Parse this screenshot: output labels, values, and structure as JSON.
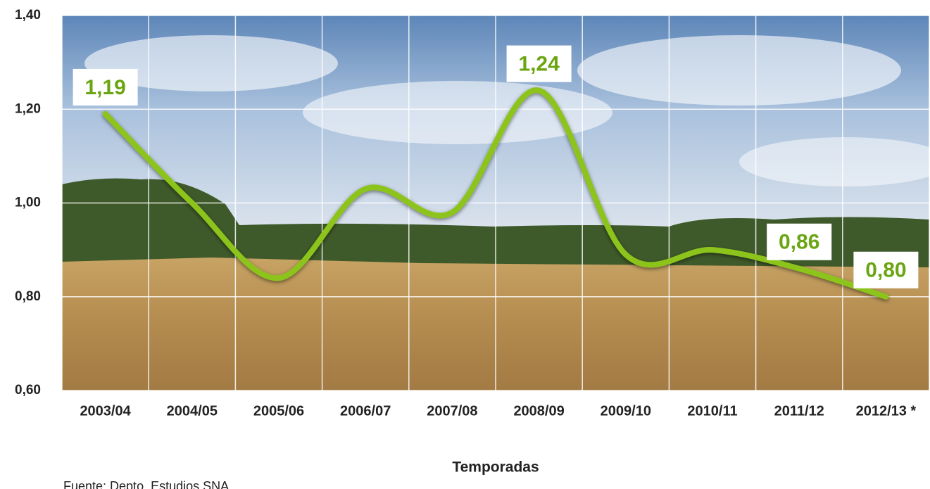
{
  "chart_data": {
    "type": "line",
    "x_label": "Temporadas",
    "source": "Fuente: Depto. Estudios SNA",
    "categories": [
      "2003/04",
      "2004/05",
      "2005/06",
      "2006/07",
      "2007/08",
      "2008/09",
      "2009/10",
      "2010/11",
      "2011/12",
      "2012/13 *"
    ],
    "series": [
      {
        "color": "#8cc41c",
        "values": [
          1.19,
          1.0,
          0.84,
          1.03,
          0.98,
          1.24,
          0.89,
          0.9,
          0.86,
          0.8
        ],
        "value_labels": [
          "1,19",
          null,
          null,
          null,
          null,
          "1,24",
          null,
          null,
          "0,86",
          "0,80"
        ]
      }
    ],
    "ylim": [
      0.6,
      1.4
    ],
    "yticks": [
      {
        "value": 0.6,
        "label": "0,60"
      },
      {
        "value": 0.8,
        "label": "0,80"
      },
      {
        "value": 1.0,
        "label": "1,00"
      },
      {
        "value": 1.2,
        "label": "1,20"
      },
      {
        "value": 1.4,
        "label": "1,40"
      }
    ],
    "grid": true
  }
}
